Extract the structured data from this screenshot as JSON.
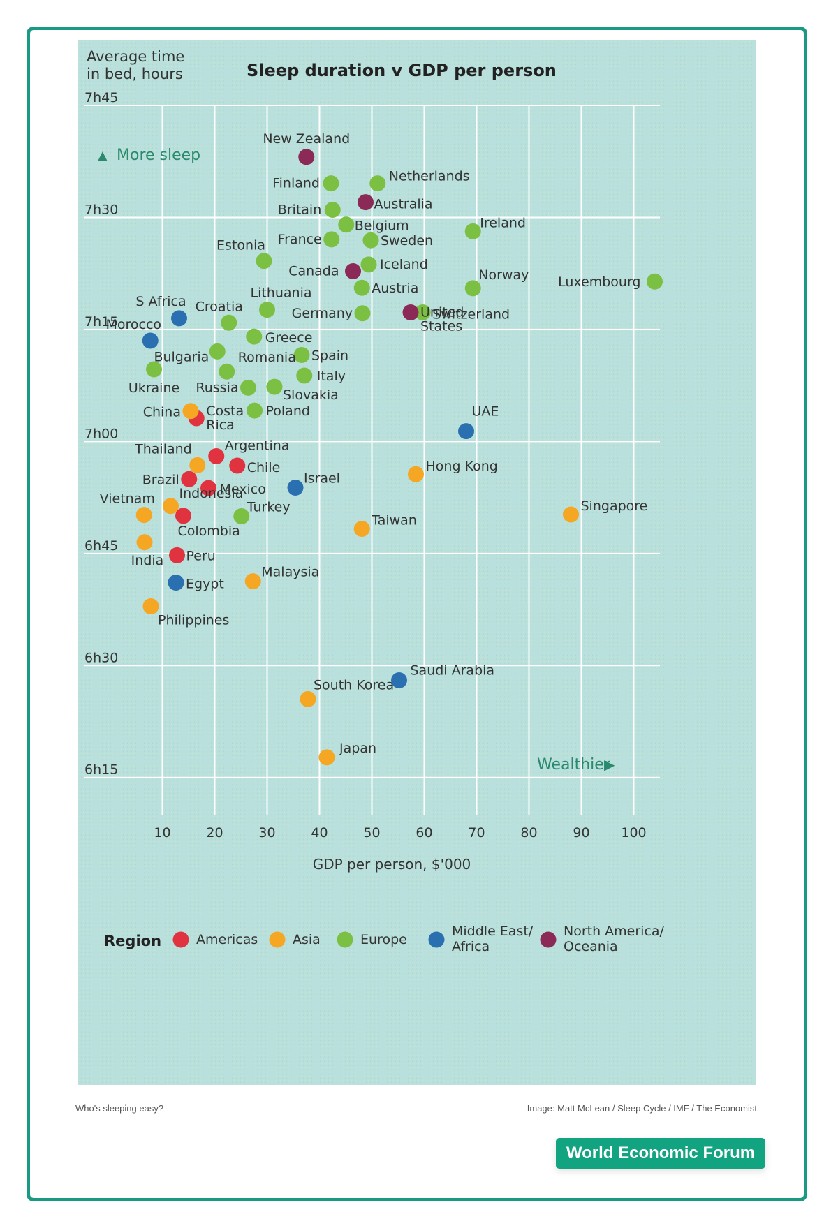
{
  "caption": "Who's sleeping easy?",
  "credit": "Image: Matt McLean / Sleep Cycle / IMF / The Economist",
  "badge": "World Economic Forum",
  "colors": {
    "frame": "#1a9a83",
    "background": "#b7dfdb",
    "grid": "#ffffff",
    "accent": "#2b8a6e",
    "Americas": "#e0323f",
    "Asia": "#f5a623",
    "Europe": "#7bc043",
    "Middle East/Africa": "#2a6fb0",
    "North America/Oceania": "#8b2a57"
  },
  "chart_data": {
    "type": "scatter",
    "title": "Sleep duration v GDP per person",
    "ylabel": "Average time in bed, hours",
    "ylabel_lines": [
      "Average time",
      "in bed, hours"
    ],
    "xlabel": "GDP per person, $'000",
    "xlim": [
      -5,
      105
    ],
    "ylim": [
      6.167,
      7.75
    ],
    "x_ticks": [
      10,
      20,
      30,
      40,
      50,
      60,
      70,
      80,
      90,
      100
    ],
    "y_ticks": [
      {
        "value": 7.75,
        "label": "7h45"
      },
      {
        "value": 7.5,
        "label": "7h30"
      },
      {
        "value": 7.25,
        "label": "7h15"
      },
      {
        "value": 7.0,
        "label": "7h00"
      },
      {
        "value": 6.75,
        "label": "6h45"
      },
      {
        "value": 6.5,
        "label": "6h30"
      },
      {
        "value": 6.25,
        "label": "6h15"
      }
    ],
    "grid": true,
    "annotations": [
      {
        "text": "More sleep",
        "symbol": "▲"
      },
      {
        "text": "Wealthier",
        "symbol": "▶"
      }
    ],
    "legend_title": "Region",
    "legend_position": "bottom",
    "series": [
      {
        "name": "Americas",
        "points": [
          {
            "label": "Costa Rica",
            "x": 16.5,
            "y": 7.052
          },
          {
            "label": "Argentina",
            "x": 20.3,
            "y": 6.967
          },
          {
            "label": "Chile",
            "x": 24.3,
            "y": 6.946
          },
          {
            "label": "Brazil",
            "x": 15.1,
            "y": 6.916
          },
          {
            "label": "Mexico",
            "x": 18.8,
            "y": 6.896
          },
          {
            "label": "Colombia",
            "x": 14.0,
            "y": 6.834
          },
          {
            "label": "Peru",
            "x": 12.8,
            "y": 6.746
          }
        ]
      },
      {
        "name": "Asia",
        "points": [
          {
            "label": "China",
            "x": 15.4,
            "y": 7.068
          },
          {
            "label": "Thailand",
            "x": 16.7,
            "y": 6.947
          },
          {
            "label": "Hong Kong",
            "x": 58.4,
            "y": 6.927
          },
          {
            "label": "Indonesia",
            "x": 11.6,
            "y": 6.856
          },
          {
            "label": "Vietnam",
            "x": 6.5,
            "y": 6.836
          },
          {
            "label": "Singapore",
            "x": 88.0,
            "y": 6.837
          },
          {
            "label": "Taiwan",
            "x": 48.1,
            "y": 6.805
          },
          {
            "label": "India",
            "x": 6.6,
            "y": 6.775
          },
          {
            "label": "Malaysia",
            "x": 27.3,
            "y": 6.688
          },
          {
            "label": "Philippines",
            "x": 7.8,
            "y": 6.632
          },
          {
            "label": "South Korea",
            "x": 37.8,
            "y": 6.425
          },
          {
            "label": "Japan",
            "x": 41.4,
            "y": 6.295
          }
        ]
      },
      {
        "name": "Europe",
        "points": [
          {
            "label": "Finland",
            "x": 42.2,
            "y": 7.576
          },
          {
            "label": "Netherlands",
            "x": 51.1,
            "y": 7.576
          },
          {
            "label": "Britain",
            "x": 42.5,
            "y": 7.517
          },
          {
            "label": "Belgium",
            "x": 45.1,
            "y": 7.484
          },
          {
            "label": "Ireland",
            "x": 69.3,
            "y": 7.469
          },
          {
            "label": "France",
            "x": 42.3,
            "y": 7.451
          },
          {
            "label": "Sweden",
            "x": 49.8,
            "y": 7.449
          },
          {
            "label": "Estonia",
            "x": 29.4,
            "y": 7.403
          },
          {
            "label": "Iceland",
            "x": 49.4,
            "y": 7.395
          },
          {
            "label": "Norway",
            "x": 69.3,
            "y": 7.342
          },
          {
            "label": "Luxembourg",
            "x": 104.0,
            "y": 7.357
          },
          {
            "label": "Austria",
            "x": 48.1,
            "y": 7.343
          },
          {
            "label": "Lithuania",
            "x": 30.0,
            "y": 7.294
          },
          {
            "label": "Germany",
            "x": 48.2,
            "y": 7.286
          },
          {
            "label": "Switzerland",
            "x": 59.7,
            "y": 7.288
          },
          {
            "label": "Croatia",
            "x": 22.7,
            "y": 7.265
          },
          {
            "label": "Greece",
            "x": 27.5,
            "y": 7.234
          },
          {
            "label": "Bulgaria",
            "x": 20.5,
            "y": 7.201
          },
          {
            "label": "Spain",
            "x": 36.6,
            "y": 7.193
          },
          {
            "label": "Ukraine",
            "x": 8.4,
            "y": 7.161
          },
          {
            "label": "Romania",
            "x": 22.3,
            "y": 7.156
          },
          {
            "label": "Italy",
            "x": 37.1,
            "y": 7.147
          },
          {
            "label": "Russia",
            "x": 26.4,
            "y": 7.12
          },
          {
            "label": "Slovakia",
            "x": 31.4,
            "y": 7.122
          },
          {
            "label": "Poland",
            "x": 27.6,
            "y": 7.069
          },
          {
            "label": "Turkey",
            "x": 25.1,
            "y": 6.833
          }
        ]
      },
      {
        "name": "Middle East/Africa",
        "points": [
          {
            "label": "S Africa",
            "x": 13.2,
            "y": 7.275
          },
          {
            "label": "Morocco",
            "x": 7.7,
            "y": 7.225
          },
          {
            "label": "UAE",
            "x": 68.0,
            "y": 7.023
          },
          {
            "label": "Israel",
            "x": 35.4,
            "y": 6.897
          },
          {
            "label": "Egypt",
            "x": 12.6,
            "y": 6.685
          },
          {
            "label": "Saudi Arabia",
            "x": 55.2,
            "y": 6.467
          }
        ]
      },
      {
        "name": "North America/Oceania",
        "points": [
          {
            "label": "New Zealand",
            "x": 37.5,
            "y": 7.635
          },
          {
            "label": "Australia",
            "x": 48.8,
            "y": 7.534
          },
          {
            "label": "Canada",
            "x": 46.4,
            "y": 7.38
          },
          {
            "label": "United States",
            "x": 57.4,
            "y": 7.288
          }
        ]
      }
    ]
  }
}
